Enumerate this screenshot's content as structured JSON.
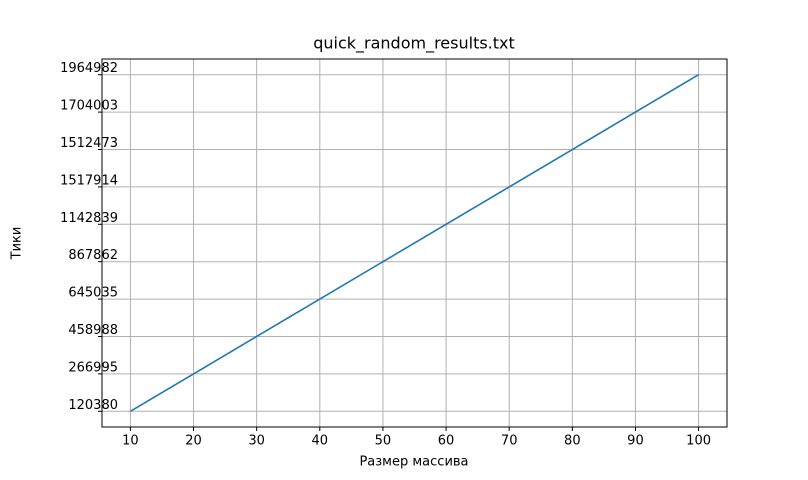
{
  "chart_data": {
    "type": "line",
    "title": "quick_random_results.txt",
    "x_label": "Размер массива",
    "y_label": "Тики",
    "x": [
      10,
      20,
      30,
      40,
      50,
      60,
      70,
      80,
      90,
      100
    ],
    "y": [
      "120380",
      "266995",
      "458988",
      "645035",
      "867862",
      "1142839",
      "1517914",
      "1512473",
      "1704003",
      "1964982"
    ],
    "y_scale": "categorical",
    "xlim": [
      5.5,
      104.5
    ],
    "xticks": [
      10,
      20,
      30,
      40,
      50,
      60,
      70,
      80,
      90,
      100
    ],
    "color": "#1f77b4",
    "grid": true
  }
}
